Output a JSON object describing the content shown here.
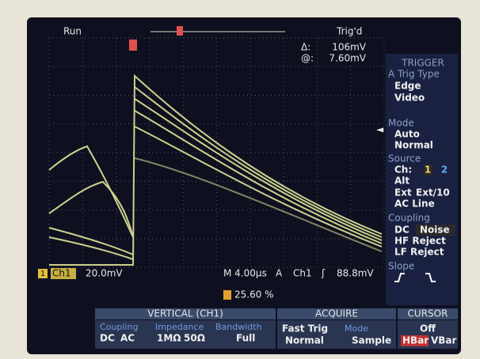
{
  "status": {
    "run": "Run",
    "trig": "Trig'd"
  },
  "readout": {
    "delta_label": "Δ:",
    "delta": "106mV",
    "at_label": "@:",
    "at": "7.60mV"
  },
  "trigger_menu": {
    "title": "TRIGGER",
    "type": {
      "label": "A Trig Type",
      "options": [
        "Edge",
        "Video"
      ]
    },
    "mode": {
      "label": "Mode",
      "options": [
        "Auto",
        "Normal"
      ]
    },
    "source": {
      "label": "Source",
      "ch_label": "Ch:",
      "channels": [
        "1",
        "2"
      ],
      "options": [
        "Alt",
        "Ext",
        "Ext/10",
        "AC Line"
      ]
    },
    "coupling": {
      "label": "Coupling",
      "options": [
        "DC",
        "Noise",
        "HF Reject",
        "LF Reject"
      ]
    },
    "slope": {
      "label": "Slope"
    }
  },
  "status_bar": {
    "ch_marker": "1",
    "channel": "Ch1",
    "scale": "20.0mV",
    "timebase": "M 4.00µs",
    "trigger_a": "A",
    "trigger_ch": "Ch1",
    "trigger_level": "88.8mV",
    "position": "25.60 %"
  },
  "bottom_menu": {
    "vertical": {
      "title": "VERTICAL (CH1)",
      "coupling": {
        "label": "Coupling",
        "options": [
          "DC",
          "AC"
        ]
      },
      "impedance": {
        "label": "Impedance",
        "options": [
          "1MΩ",
          "50Ω"
        ]
      },
      "bandwidth": {
        "label": "Bandwidth",
        "value": "Full"
      }
    },
    "acquire": {
      "title": "ACQUIRE",
      "fast_trig": {
        "label": "Fast Trig",
        "value": "Normal"
      },
      "mode": {
        "label": "Mode",
        "value": "Sample"
      }
    },
    "cursor": {
      "title": "CURSOR",
      "value": "Off",
      "options": [
        "HBar",
        "VBar"
      ]
    }
  }
}
